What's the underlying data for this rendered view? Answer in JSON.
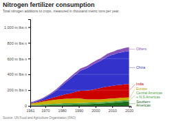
{
  "chart_data": {
    "type": "area",
    "stacked": true,
    "grid": true,
    "title": "Nitrogen fertilizer consumption",
    "subtitle": "Total nitrogen additions to crops, measured in thousand metric tons per year.",
    "source": "Source: UN Food and Agriculture Organization (FAO)",
    "x": [
      1961,
      1963,
      1965,
      1967,
      1969,
      1971,
      1973,
      1975,
      1977,
      1979,
      1981,
      1983,
      1985,
      1987,
      1989,
      1991,
      1993,
      1995,
      1997,
      1999,
      2001,
      2003,
      2005,
      2007,
      2009,
      2011,
      2013,
      2015,
      2017,
      2019,
      2020
    ],
    "xlim": [
      1961,
      2021
    ],
    "xticks": [
      1961,
      1970,
      1980,
      1990,
      2000,
      2010,
      2020
    ],
    "ylim": [
      0,
      1100
    ],
    "yticks": [
      0,
      {
        "value": 200,
        "label": "200 m lbs n"
      },
      {
        "value": 400,
        "label": "400 m lbs n"
      },
      {
        "value": 600,
        "label": "600 m lbs n"
      },
      {
        "value": 800,
        "label": "800 m lbs n"
      },
      {
        "value": 1000,
        "label": "1,000 m lbs n"
      }
    ],
    "series": [
      {
        "name": "Southern\nAmericas",
        "color": "#1a6e1a",
        "values": [
          3,
          4,
          4,
          5,
          6,
          7,
          8,
          10,
          11,
          13,
          15,
          16,
          16,
          17,
          18,
          19,
          20,
          22,
          24,
          26,
          28,
          30,
          33,
          36,
          39,
          42,
          46,
          49,
          52,
          55,
          56
        ]
      },
      {
        "name": "Central Americas\n+ N.S.Americas",
        "color": "#55aa44",
        "values": [
          8,
          9,
          10,
          11,
          13,
          14,
          15,
          16,
          17,
          18,
          19,
          19,
          19,
          19,
          19,
          19,
          19,
          19,
          19,
          18,
          18,
          18,
          18,
          18,
          18,
          18,
          18,
          18,
          18,
          17,
          17
        ]
      },
      {
        "name": "Europe",
        "color": "#c8b000",
        "values": [
          18,
          22,
          27,
          33,
          38,
          43,
          47,
          50,
          53,
          55,
          56,
          57,
          57,
          58,
          58,
          55,
          48,
          42,
          40,
          38,
          37,
          36,
          36,
          36,
          36,
          35,
          35,
          35,
          35,
          35,
          35
        ]
      },
      {
        "name": "India",
        "color": "#cc0000",
        "values": [
          4,
          5,
          8,
          10,
          13,
          18,
          23,
          30,
          36,
          44,
          52,
          60,
          68,
          78,
          88,
          100,
          105,
          112,
          118,
          128,
          135,
          142,
          150,
          155,
          158,
          162,
          165,
          165,
          168,
          170,
          168
        ]
      },
      {
        "name": "China",
        "color": "#3333cc",
        "values": [
          5,
          8,
          12,
          18,
          25,
          35,
          50,
          65,
          85,
          110,
          135,
          160,
          185,
          210,
          230,
          255,
          270,
          285,
          305,
          320,
          335,
          345,
          360,
          380,
          390,
          395,
          405,
          410,
          415,
          418,
          420
        ]
      },
      {
        "name": "Others",
        "color": "#8855bb",
        "values": [
          8,
          9,
          10,
          11,
          12,
          13,
          15,
          17,
          18,
          20,
          22,
          23,
          25,
          26,
          27,
          28,
          28,
          29,
          30,
          31,
          32,
          33,
          35,
          37,
          38,
          40,
          42,
          44,
          46,
          48,
          49
        ]
      }
    ]
  }
}
